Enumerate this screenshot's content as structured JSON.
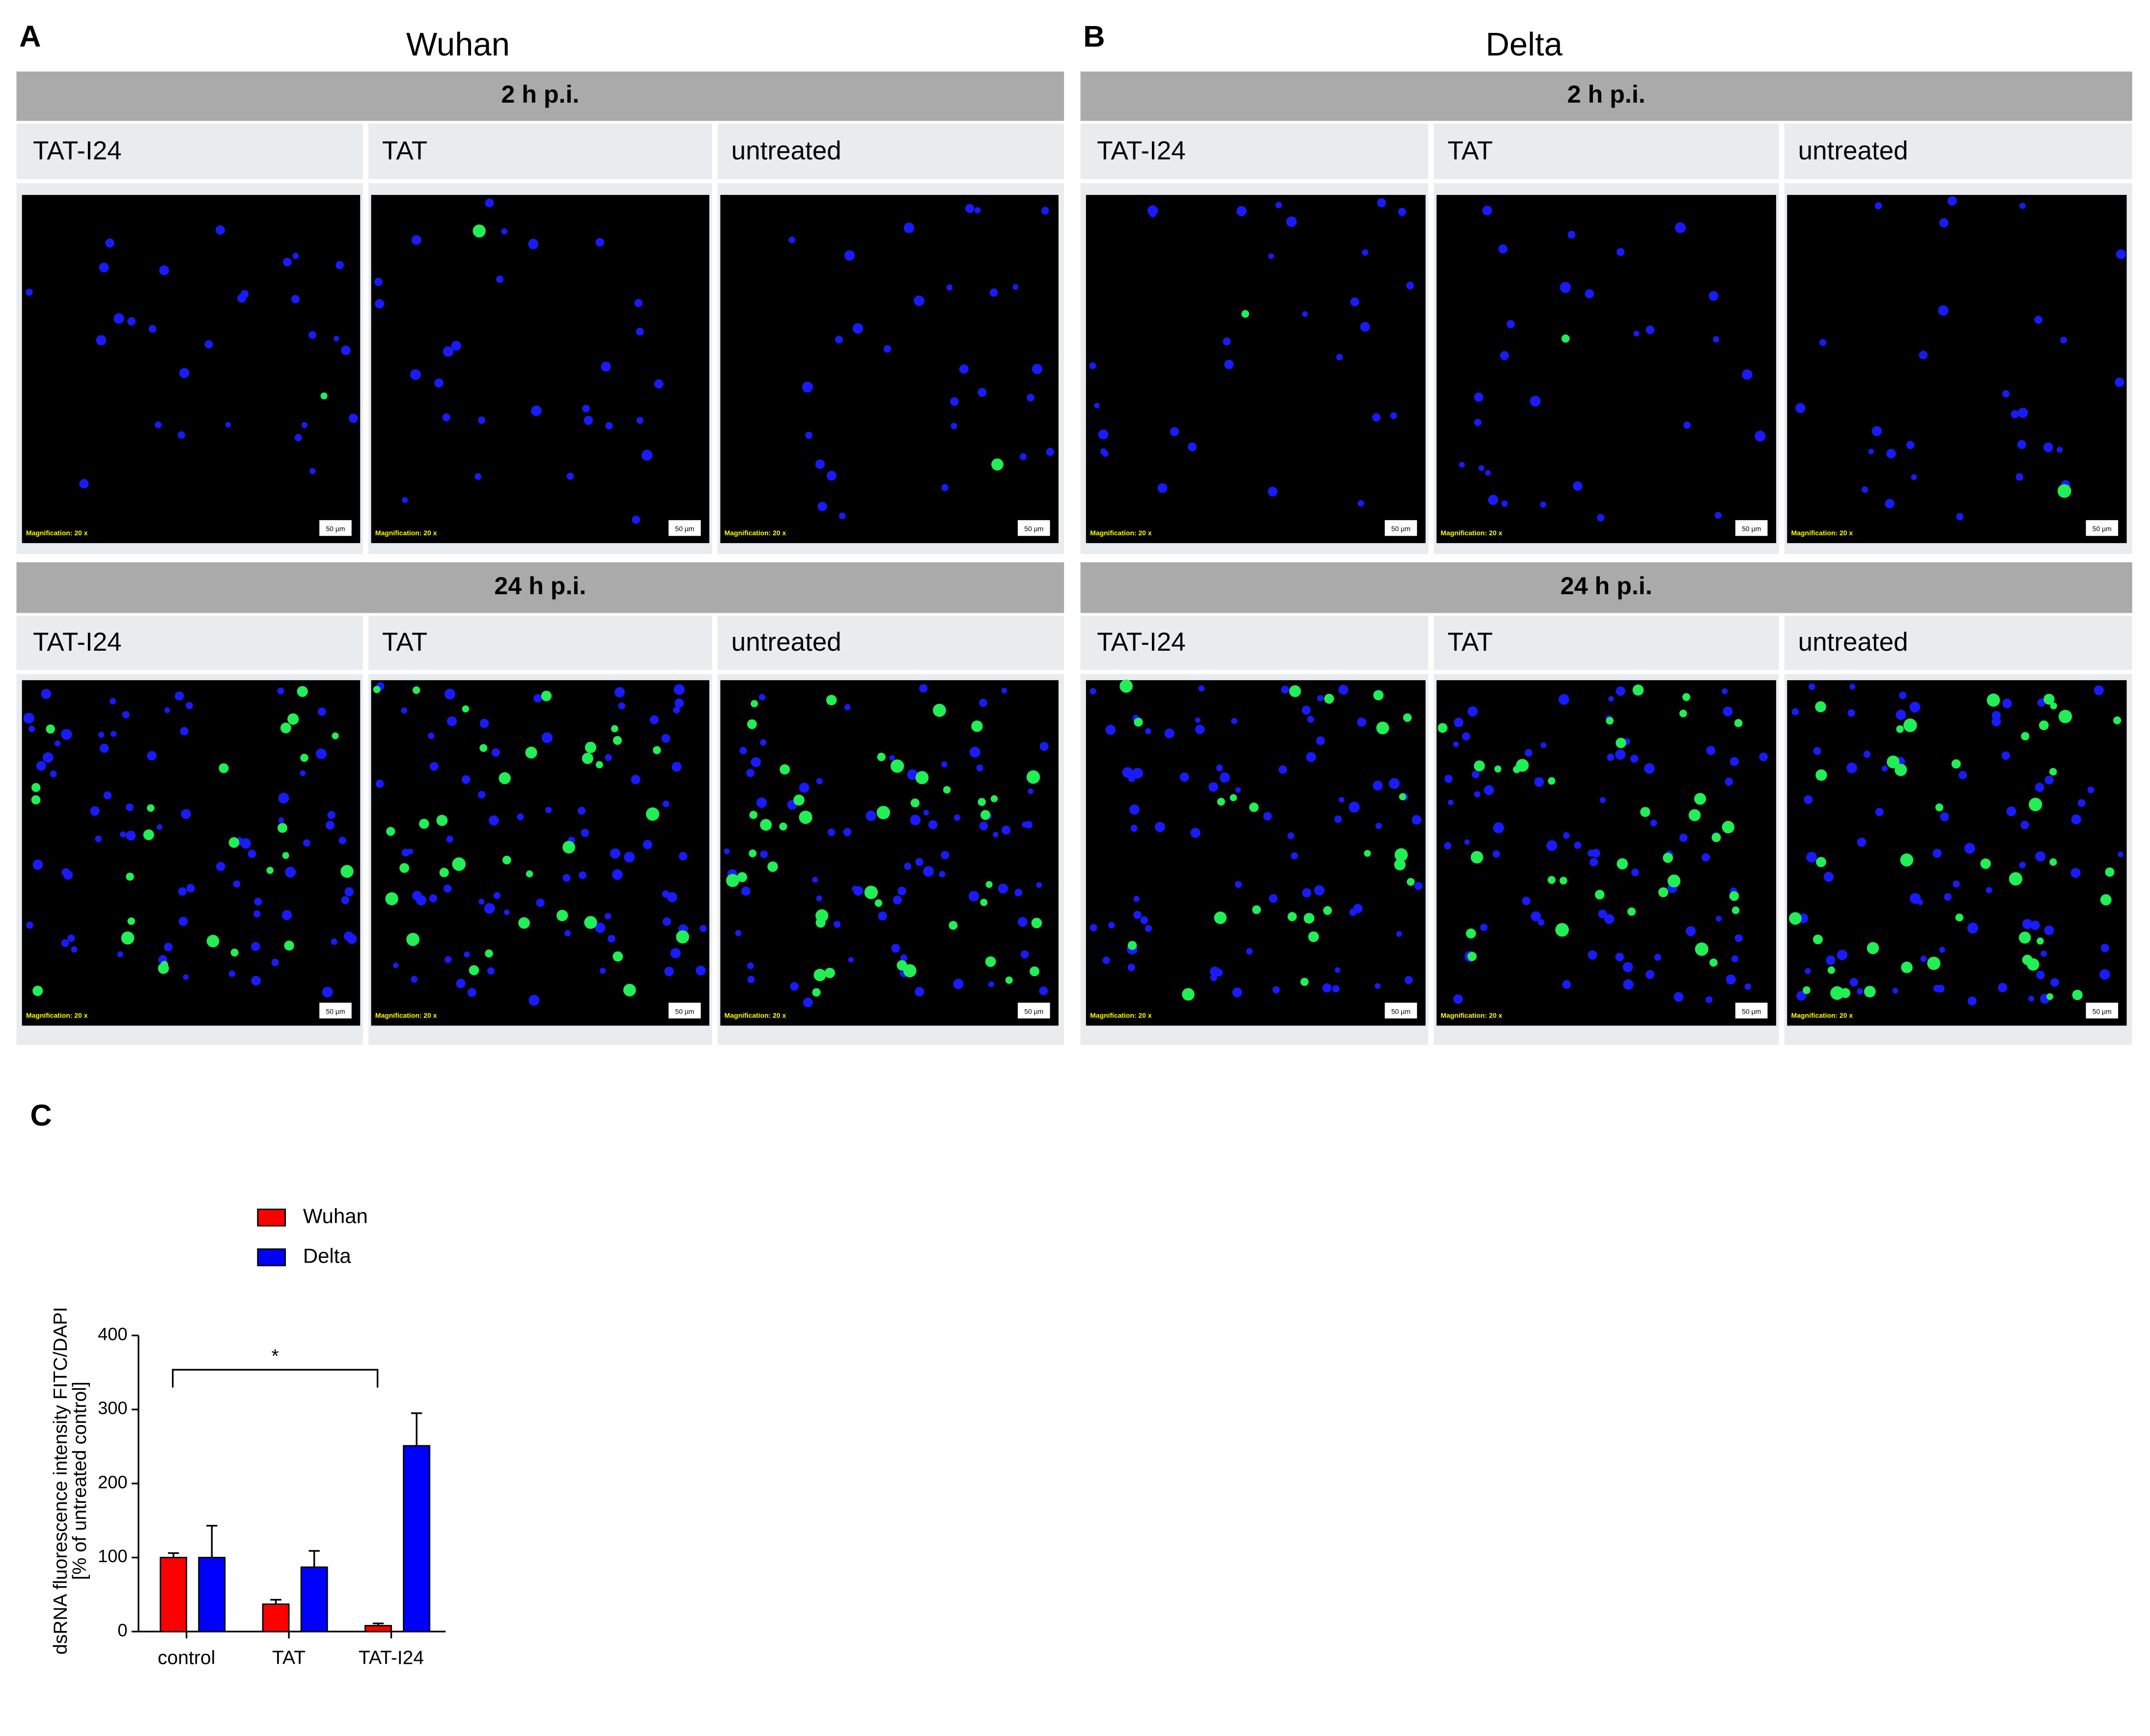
{
  "panels": [
    {
      "letter": "A",
      "title": "Wuhan",
      "rows": [
        {
          "time": "2 h p.i.",
          "columns": [
            "TAT-I24",
            "TAT",
            "untreated"
          ]
        },
        {
          "time": "24 h p.i.",
          "columns": [
            "TAT-I24",
            "TAT",
            "untreated"
          ]
        }
      ]
    },
    {
      "letter": "B",
      "title": "Delta",
      "rows": [
        {
          "time": "2 h p.i.",
          "columns": [
            "TAT-I24",
            "TAT",
            "untreated"
          ]
        },
        {
          "time": "24 h p.i.",
          "columns": [
            "TAT-I24",
            "TAT",
            "untreated"
          ]
        }
      ]
    }
  ],
  "image_caption": "Magnification: 20 x",
  "scale_bar": "50 µm",
  "chart_data": {
    "type": "bar",
    "letter": "C",
    "y_label": [
      "dsRNA fluorescence intensity FITC/DAPI",
      "[% of untreated control]"
    ],
    "categories": [
      "control",
      "TAT",
      "TAT-I24"
    ],
    "series": [
      {
        "name": "Wuhan",
        "color": "#ff0000",
        "values": [
          100,
          37,
          8
        ],
        "errors": [
          6,
          6,
          3
        ]
      },
      {
        "name": "Delta",
        "color": "#0000ff",
        "values": [
          100,
          87,
          251
        ],
        "errors": [
          43,
          22,
          44
        ]
      }
    ],
    "ylim": [
      0,
      400
    ],
    "yticks": [
      0,
      100,
      200,
      300,
      400
    ],
    "significance": {
      "label": "*",
      "from": 0,
      "to": 2
    }
  }
}
